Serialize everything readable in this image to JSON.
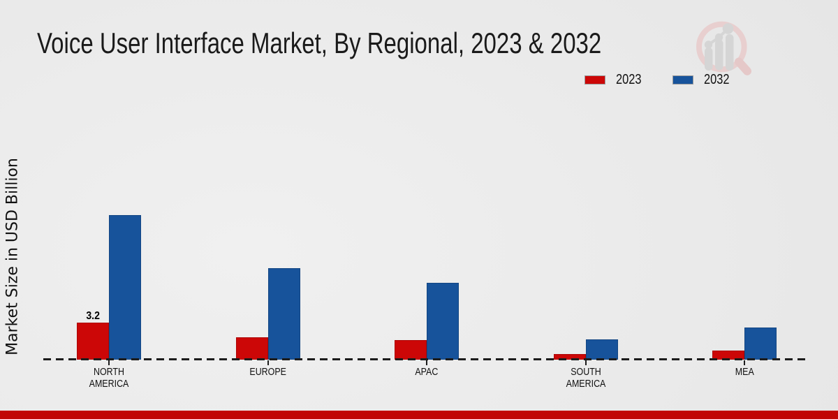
{
  "title": "Voice User Interface Market, By Regional, 2023 & 2032",
  "ylabel": "Market Size in USD Billion",
  "legend": [
    {
      "label": "2023",
      "color": "#cc0707"
    },
    {
      "label": "2032",
      "color": "#17539b"
    }
  ],
  "footer_color": "#c10505",
  "chart_data": {
    "type": "bar",
    "categories": [
      "NORTH AMERICA",
      "EUROPE",
      "APAC",
      "SOUTH AMERICA",
      "MEA"
    ],
    "series": [
      {
        "name": "2023",
        "color": "#cc0707",
        "values": [
          3.2,
          1.9,
          1.7,
          0.5,
          0.8
        ]
      },
      {
        "name": "2032",
        "color": "#17539b",
        "values": [
          12.5,
          7.9,
          6.6,
          1.75,
          2.8
        ]
      }
    ],
    "data_labels": [
      {
        "series": 0,
        "category": 0,
        "text": "3.2"
      }
    ],
    "ylim": [
      0,
      13
    ],
    "grid": false,
    "legend_position": "top-right"
  }
}
